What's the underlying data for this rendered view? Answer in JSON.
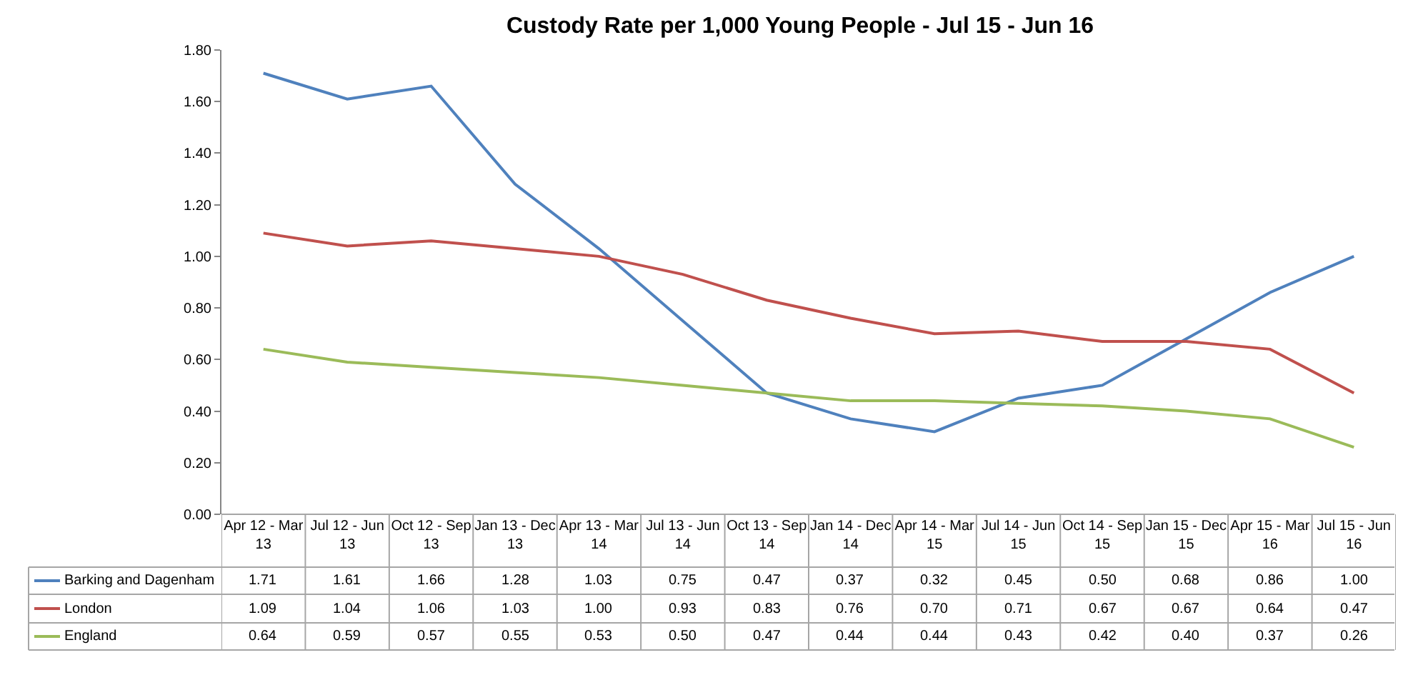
{
  "chart_data": {
    "type": "line",
    "title": "Custody Rate per 1,000 Young People - Jul 15 - Jun 16",
    "categories": [
      "Apr 12 - Mar 13",
      "Jul 12 - Jun 13",
      "Oct 12 - Sep 13",
      "Jan 13 - Dec 13",
      "Apr 13 - Mar 14",
      "Jul 13 - Jun 14",
      "Oct 13 - Sep 14",
      "Jan 14 - Dec 14",
      "Apr 14 - Mar 15",
      "Jul 14 - Jun 15",
      "Oct 14 - Sep 15",
      "Jan 15 - Dec 15",
      "Apr 15 - Mar 16",
      "Jul 15 - Jun 16"
    ],
    "series": [
      {
        "name": "Barking and Dagenham",
        "color": "#4f81bd",
        "values": [
          1.71,
          1.61,
          1.66,
          1.28,
          1.03,
          0.75,
          0.47,
          0.37,
          0.32,
          0.45,
          0.5,
          0.68,
          0.86,
          1.0
        ],
        "value_labels": [
          "1.71",
          "1.61",
          "1.66",
          "1.28",
          "1.03",
          "0.75",
          "0.47",
          "0.37",
          "0.32",
          "0.45",
          "0.50",
          "0.68",
          "0.86",
          "1.00"
        ]
      },
      {
        "name": "London",
        "color": "#c0504d",
        "values": [
          1.09,
          1.04,
          1.06,
          1.03,
          1.0,
          0.93,
          0.83,
          0.76,
          0.7,
          0.71,
          0.67,
          0.67,
          0.64,
          0.47
        ],
        "value_labels": [
          "1.09",
          "1.04",
          "1.06",
          "1.03",
          "1.00",
          "0.93",
          "0.83",
          "0.76",
          "0.70",
          "0.71",
          "0.67",
          "0.67",
          "0.64",
          "0.47"
        ]
      },
      {
        "name": "England",
        "color": "#9bbb59",
        "values": [
          0.64,
          0.59,
          0.57,
          0.55,
          0.53,
          0.5,
          0.47,
          0.44,
          0.44,
          0.43,
          0.42,
          0.4,
          0.37,
          0.26
        ],
        "value_labels": [
          "0.64",
          "0.59",
          "0.57",
          "0.55",
          "0.53",
          "0.50",
          "0.47",
          "0.44",
          "0.44",
          "0.43",
          "0.42",
          "0.40",
          "0.37",
          "0.26"
        ]
      }
    ],
    "ylim": [
      0,
      1.8
    ],
    "yticks": [
      {
        "value": 0,
        "label": "0.00"
      },
      {
        "value": 0.2,
        "label": "0.20"
      },
      {
        "value": 0.4,
        "label": "0.40"
      },
      {
        "value": 0.6,
        "label": "0.60"
      },
      {
        "value": 0.8,
        "label": "0.80"
      },
      {
        "value": 1.0,
        "label": "1.00"
      },
      {
        "value": 1.2,
        "label": "1.20"
      },
      {
        "value": 1.4,
        "label": "1.40"
      },
      {
        "value": 1.6,
        "label": "1.60"
      },
      {
        "value": 1.8,
        "label": "1.80"
      }
    ],
    "grid": false,
    "marker": "none",
    "line_style": "solid",
    "legend": "bottom left"
  }
}
